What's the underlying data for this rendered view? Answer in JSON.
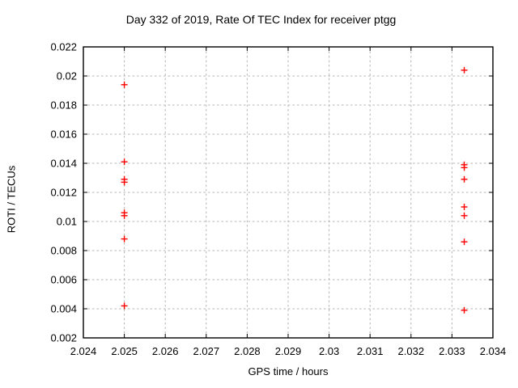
{
  "chart_data": {
    "type": "scatter",
    "title": "Day 332 of 2019, Rate Of TEC Index for receiver ptgg",
    "xlabel": "GPS time / hours",
    "ylabel": "ROTI / TECUs",
    "xlim": [
      2.024,
      2.034
    ],
    "ylim": [
      0.002,
      0.022
    ],
    "x_ticks": [
      "2.024",
      "2.025",
      "2.026",
      "2.027",
      "2.028",
      "2.029",
      "2.03",
      "2.031",
      "2.032",
      "2.033",
      "2.034"
    ],
    "y_ticks": [
      "0.002",
      "0.004",
      "0.006",
      "0.008",
      "0.01",
      "0.012",
      "0.014",
      "0.016",
      "0.018",
      "0.02",
      "0.022"
    ],
    "grid": true,
    "legend": "none",
    "marker": "plus",
    "marker_color": "#ff0000",
    "points": [
      [
        2.025,
        0.0194
      ],
      [
        2.025,
        0.0141
      ],
      [
        2.025,
        0.0129
      ],
      [
        2.025,
        0.0127
      ],
      [
        2.025,
        0.0106
      ],
      [
        2.025,
        0.0104
      ],
      [
        2.025,
        0.0088
      ],
      [
        2.025,
        0.0042
      ],
      [
        2.0333,
        0.0204
      ],
      [
        2.0333,
        0.0139
      ],
      [
        2.0333,
        0.0137
      ],
      [
        2.0333,
        0.0129
      ],
      [
        2.0333,
        0.011
      ],
      [
        2.0333,
        0.0104
      ],
      [
        2.0333,
        0.0086
      ],
      [
        2.0333,
        0.0039
      ]
    ]
  }
}
